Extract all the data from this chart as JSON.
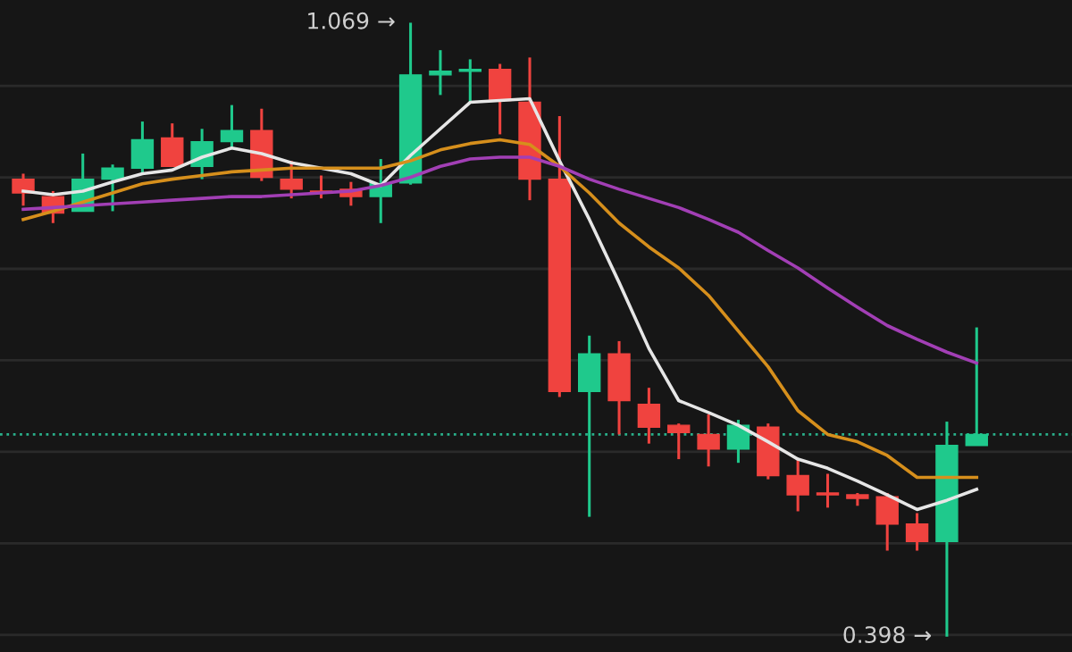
{
  "chart_data": {
    "type": "candlestick",
    "categories": [
      null,
      null,
      null,
      null,
      null,
      null,
      null,
      null,
      null,
      null,
      null,
      null,
      null,
      null,
      null,
      null,
      null,
      null,
      null,
      null,
      null,
      null,
      null,
      null,
      null,
      null,
      null,
      null,
      null,
      null,
      null,
      null,
      null
    ],
    "ohlc": [
      [
        0.898,
        0.904,
        0.869,
        0.883
      ],
      [
        0.879,
        0.885,
        0.85,
        0.861
      ],
      [
        0.863,
        0.926,
        0.863,
        0.898
      ],
      [
        0.898,
        0.914,
        0.863,
        0.91
      ],
      [
        0.91,
        0.961,
        0.904,
        0.941
      ],
      [
        0.943,
        0.959,
        0.912,
        0.912
      ],
      [
        0.912,
        0.953,
        0.898,
        0.939
      ],
      [
        0.939,
        0.979,
        0.932,
        0.951
      ],
      [
        0.951,
        0.975,
        0.896,
        0.9
      ],
      [
        0.898,
        0.918,
        0.877,
        0.887
      ],
      [
        0.885,
        0.902,
        0.877,
        0.883
      ],
      [
        0.887,
        0.895,
        0.869,
        0.879
      ],
      [
        0.879,
        0.92,
        0.85,
        0.893
      ],
      [
        0.894,
        1.069,
        0.892,
        1.012
      ],
      [
        1.012,
        1.039,
        0.99,
        1.016
      ],
      [
        1.016,
        1.029,
        0.982,
        1.018
      ],
      [
        1.018,
        1.024,
        0.947,
        0.984
      ],
      [
        0.982,
        1.031,
        0.875,
        0.898
      ],
      [
        0.898,
        0.967,
        0.66,
        0.666
      ],
      [
        0.666,
        0.727,
        0.529,
        0.707
      ],
      [
        0.707,
        0.721,
        0.619,
        0.656
      ],
      [
        0.652,
        0.67,
        0.609,
        0.627
      ],
      [
        0.629,
        0.631,
        0.592,
        0.621
      ],
      [
        0.619,
        0.641,
        0.584,
        0.603
      ],
      [
        0.603,
        0.635,
        0.588,
        0.629
      ],
      [
        0.627,
        0.631,
        0.57,
        0.574
      ],
      [
        0.574,
        0.592,
        0.535,
        0.553
      ],
      [
        0.555,
        0.576,
        0.539,
        0.553
      ],
      [
        0.553,
        0.555,
        0.541,
        0.549
      ],
      [
        0.551,
        0.555,
        0.492,
        0.521
      ],
      [
        0.521,
        0.533,
        0.492,
        0.502
      ],
      [
        0.502,
        0.633,
        0.398,
        0.607
      ],
      [
        0.607,
        0.736,
        0.607,
        0.619
      ]
    ],
    "colors": [
      "#f0433f",
      "#f0433f",
      "#1fc98c",
      "#1fc98c",
      "#1fc98c",
      "#f0433f",
      "#1fc98c",
      "#1fc98c",
      "#f0433f",
      "#f0433f",
      "#f0433f",
      "#f0433f",
      "#1fc98c",
      "#1fc98c",
      "#1fc98c",
      "#1fc98c",
      "#f0433f",
      "#f0433f",
      "#f0433f",
      "#1fc98c",
      "#f0433f",
      "#f0433f",
      "#f0433f",
      "#f0433f",
      "#1fc98c",
      "#f0433f",
      "#f0433f",
      "#f0433f",
      "#f0433f",
      "#f0433f",
      "#f0433f",
      "#1fc98c",
      "#1fc98c"
    ],
    "series": [
      {
        "type": "line",
        "color": "#e6e6e6",
        "values": [
          0.885,
          0.881,
          0.885,
          0.895,
          0.904,
          0.908,
          0.922,
          0.932,
          0.926,
          0.916,
          0.91,
          0.904,
          0.891,
          0.924,
          0.953,
          0.982,
          0.984,
          0.986,
          0.918,
          0.854,
          0.785,
          0.713,
          0.656,
          0.643,
          0.629,
          0.611,
          0.592,
          0.582,
          0.568,
          0.553,
          0.537,
          0.547,
          0.559
        ]
      },
      {
        "type": "line",
        "color": "#d68f1c",
        "values": [
          0.854,
          0.863,
          0.873,
          0.883,
          0.893,
          0.898,
          0.902,
          0.906,
          0.908,
          0.91,
          0.91,
          0.91,
          0.91,
          0.918,
          0.93,
          0.937,
          0.941,
          0.936,
          0.912,
          0.883,
          0.85,
          0.824,
          0.801,
          0.771,
          0.732,
          0.693,
          0.645,
          0.619,
          0.611,
          0.596,
          0.572,
          0.572,
          0.572
        ]
      },
      {
        "type": "line",
        "color": "#a23fb5",
        "values": [
          0.865,
          0.867,
          0.869,
          0.871,
          0.873,
          0.875,
          0.877,
          0.879,
          0.879,
          0.881,
          0.883,
          0.885,
          0.891,
          0.9,
          0.912,
          0.92,
          0.922,
          0.922,
          0.912,
          0.898,
          0.887,
          0.877,
          0.867,
          0.854,
          0.84,
          0.82,
          0.801,
          0.779,
          0.758,
          0.738,
          0.723,
          0.709,
          0.697
        ]
      }
    ],
    "ref_lines": [
      {
        "axis": "y",
        "value": 0.619,
        "color": "#2ab08a",
        "line_style": "dotted"
      }
    ],
    "annotations": [
      "1.069 →",
      "0.398 →"
    ],
    "yticks": [
      {
        "value": 0.4,
        "label": null
      },
      {
        "value": 0.5,
        "label": null
      },
      {
        "value": 0.6,
        "label": null
      },
      {
        "value": 0.7,
        "label": null
      },
      {
        "value": 0.8,
        "label": null
      },
      {
        "value": 0.9,
        "label": null
      },
      {
        "value": 1.0,
        "label": null
      }
    ],
    "grid": "y"
  }
}
